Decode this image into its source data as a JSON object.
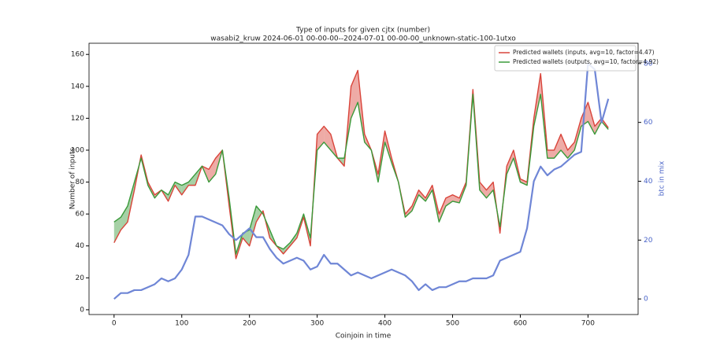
{
  "chart_data": {
    "type": "line",
    "title": "Type of inputs for given cjtx (number)",
    "subtitle": "wasabi2_kruw 2024-06-01 00-00-00--2024-07-01 00-00-00_unknown-static-100-1utxo",
    "xlabel": "Coinjoin in time",
    "ylabel": "Number of inputs",
    "y2label": "btc in mix",
    "legend": "upper right",
    "xlim": [
      -37,
      774
    ],
    "xticks": [
      0,
      100,
      200,
      300,
      400,
      500,
      600,
      700
    ],
    "ylim": [
      -3,
      167
    ],
    "yticks": [
      0,
      20,
      40,
      60,
      80,
      100,
      120,
      140,
      160
    ],
    "y2lim": [
      -5.3,
      86.9
    ],
    "y2ticks": [
      0,
      20,
      40,
      60,
      80
    ],
    "x": [
      0,
      10,
      20,
      30,
      40,
      50,
      60,
      70,
      80,
      90,
      100,
      110,
      120,
      130,
      140,
      150,
      160,
      170,
      180,
      190,
      200,
      210,
      220,
      230,
      240,
      250,
      260,
      270,
      280,
      290,
      300,
      310,
      320,
      330,
      340,
      350,
      360,
      370,
      380,
      390,
      400,
      410,
      420,
      430,
      440,
      450,
      460,
      470,
      480,
      490,
      500,
      510,
      520,
      530,
      540,
      550,
      560,
      570,
      580,
      590,
      600,
      610,
      620,
      630,
      640,
      650,
      660,
      670,
      680,
      690,
      700,
      710,
      720,
      730
    ],
    "series": [
      {
        "name": "Predicted wallets (inputs, avg=10, factor=4.47)",
        "color": "#d9443a",
        "values": [
          42,
          50,
          55,
          75,
          97,
          80,
          72,
          75,
          68,
          78,
          72,
          78,
          78,
          90,
          88,
          95,
          100,
          65,
          32,
          45,
          40,
          55,
          62,
          45,
          40,
          35,
          40,
          45,
          58,
          40,
          110,
          115,
          110,
          95,
          90,
          140,
          150,
          110,
          100,
          85,
          112,
          95,
          80,
          60,
          65,
          75,
          70,
          78,
          60,
          70,
          72,
          70,
          80,
          138,
          80,
          75,
          80,
          48,
          90,
          100,
          82,
          80,
          120,
          148,
          100,
          100,
          110,
          100,
          105,
          120,
          130,
          115,
          120,
          114
        ]
      },
      {
        "name": "Predicted wallets (outputs, avg=10, factor=4.92)",
        "color": "#3a9a3a",
        "values": [
          55,
          58,
          65,
          80,
          95,
          78,
          70,
          75,
          72,
          80,
          78,
          80,
          85,
          90,
          80,
          85,
          100,
          70,
          35,
          48,
          50,
          65,
          60,
          50,
          40,
          38,
          42,
          48,
          60,
          45,
          100,
          105,
          100,
          95,
          95,
          120,
          130,
          105,
          100,
          80,
          105,
          92,
          80,
          58,
          62,
          72,
          68,
          75,
          55,
          65,
          68,
          67,
          78,
          135,
          75,
          70,
          75,
          52,
          85,
          95,
          80,
          78,
          115,
          135,
          95,
          95,
          100,
          95,
          100,
          115,
          118,
          110,
          118,
          113
        ]
      },
      {
        "color": "#6f86d6",
        "axis": "y2",
        "values": [
          0,
          2,
          2,
          3,
          3,
          4,
          5,
          7,
          6,
          7,
          10,
          15,
          28,
          28,
          27,
          26,
          25,
          22,
          20,
          22,
          24,
          21,
          21,
          17,
          14,
          12,
          13,
          14,
          13,
          10,
          11,
          15,
          12,
          12,
          10,
          8,
          9,
          8,
          7,
          8,
          9,
          10,
          9,
          8,
          6,
          3,
          5,
          3,
          4,
          4,
          5,
          6,
          6,
          7,
          7,
          7,
          8,
          13,
          14,
          15,
          16,
          24,
          40,
          45,
          42,
          44,
          45,
          47,
          49,
          50,
          80,
          78,
          60,
          68
        ]
      }
    ]
  }
}
